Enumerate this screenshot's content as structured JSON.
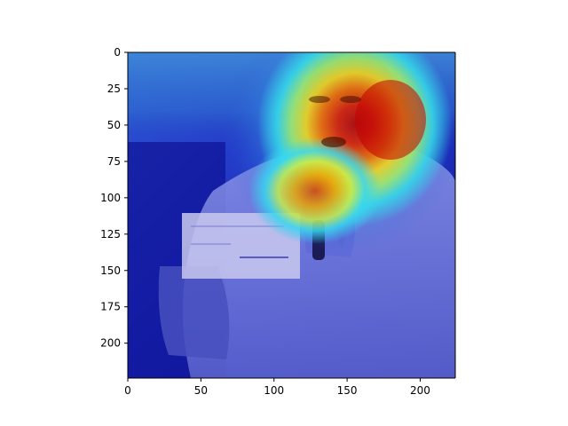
{
  "image": {
    "description_icon": "heatmap-overlay-image",
    "colormap": "jet",
    "overlay_alpha": 0.5
  },
  "axes": {
    "x_ticks": [
      {
        "value": 0,
        "label": "0"
      },
      {
        "value": 50,
        "label": "50"
      },
      {
        "value": 100,
        "label": "100"
      },
      {
        "value": 150,
        "label": "150"
      },
      {
        "value": 200,
        "label": "200"
      }
    ],
    "y_ticks": [
      {
        "value": 0,
        "label": "0"
      },
      {
        "value": 25,
        "label": "25"
      },
      {
        "value": 50,
        "label": "50"
      },
      {
        "value": 75,
        "label": "75"
      },
      {
        "value": 100,
        "label": "100"
      },
      {
        "value": 125,
        "label": "125"
      },
      {
        "value": 150,
        "label": "150"
      },
      {
        "value": 175,
        "label": "175"
      },
      {
        "value": 200,
        "label": "200"
      }
    ],
    "x_range": [
      0,
      224
    ],
    "y_range": [
      0,
      224
    ],
    "y_inverted": true
  },
  "colors": {
    "background_blue": "#1a1fb5",
    "hot_red": "#d81a00",
    "warm_yellow": "#f2d21b",
    "cyan": "#35d6e8",
    "axis": "#000000"
  }
}
